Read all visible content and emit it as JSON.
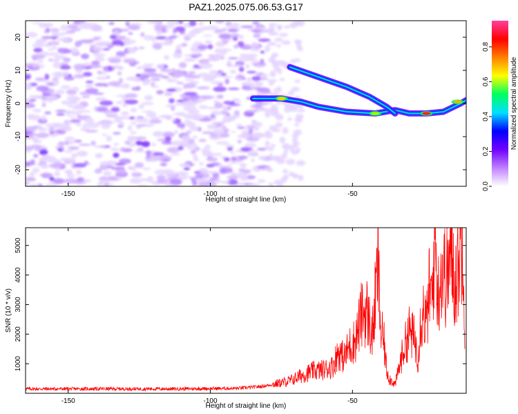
{
  "title": "PAZ1.2025.075.06.53.G17",
  "chart_data": [
    {
      "type": "heatmap",
      "xlabel": "Height of straight line (km)",
      "ylabel": "Frequency (Hz)",
      "xlim": [
        -165,
        -10
      ],
      "ylim": [
        -25,
        25
      ],
      "x_ticks": [
        -150,
        -100,
        -50
      ],
      "y_ticks": [
        -20,
        -10,
        0,
        10,
        20
      ],
      "colorbar": {
        "label": "Normalized spectral amplitude",
        "range": [
          0.0,
          0.95
        ],
        "ticks": [
          0.0,
          0.2,
          0.4,
          0.6,
          0.8
        ],
        "colormap": [
          "#ffffff",
          "#c080ff",
          "#7000ff",
          "#0000ff",
          "#00e0ff",
          "#00ff60",
          "#ffff00",
          "#ff8000",
          "#ff0000",
          "#ff40a0"
        ]
      },
      "tracks": [
        {
          "name": "",
          "points": [
            [
              -85,
              1.5
            ],
            [
              -75,
              1.5
            ],
            [
              -68,
              0.5
            ],
            [
              -62,
              -1
            ],
            [
              -52,
              -2.5
            ],
            [
              -42,
              -3
            ],
            [
              -35,
              -2
            ],
            [
              -30,
              -3
            ],
            [
              -24,
              -3
            ],
            [
              -18,
              -2.5
            ],
            [
              -12,
              0
            ],
            [
              -10,
              1
            ]
          ]
        },
        {
          "name": "",
          "points": [
            [
              -72,
              11
            ],
            [
              -62,
              8
            ],
            [
              -52,
              5
            ],
            [
              -44,
              2
            ],
            [
              -38,
              -1
            ],
            [
              -35,
              -3
            ]
          ]
        }
      ]
    },
    {
      "type": "line",
      "xlabel": "Height of straight line (km)",
      "ylabel": "SNR (10 * v/v)",
      "xlim": [
        -165,
        -10
      ],
      "ylim": [
        0,
        5600
      ],
      "x_ticks": [
        -150,
        -100,
        -50
      ],
      "y_ticks": [
        1000,
        2000,
        3000,
        4000,
        5000
      ],
      "color": "#ff0000",
      "series": [
        {
          "x": [
            -165,
            -160,
            -150,
            -140,
            -130,
            -120,
            -110,
            -100,
            -90,
            -82,
            -78,
            -72,
            -68,
            -64,
            -60,
            -57,
            -55,
            -53,
            -51,
            -49,
            -47,
            -45,
            -43,
            -41,
            -40,
            -39,
            -38,
            -37,
            -36,
            -35,
            -34,
            -32,
            -30,
            -28,
            -27,
            -26,
            -25,
            -24,
            -23,
            -22,
            -21,
            -20,
            -19,
            -18,
            -17,
            -16,
            -15,
            -14,
            -13,
            -12,
            -11,
            -10.5
          ],
          "y": [
            150,
            150,
            150,
            150,
            150,
            150,
            150,
            160,
            170,
            230,
            300,
            420,
            600,
            750,
            800,
            900,
            1400,
            1200,
            1600,
            1800,
            2600,
            2800,
            1900,
            4400,
            2000,
            1800,
            800,
            500,
            400,
            300,
            700,
            1500,
            2100,
            1800,
            1200,
            2500,
            2800,
            2300,
            3500,
            3100,
            5600,
            3200,
            4100,
            4200,
            3800,
            4400,
            4700,
            3700,
            4300,
            5000,
            5600,
            1600
          ]
        }
      ]
    }
  ]
}
